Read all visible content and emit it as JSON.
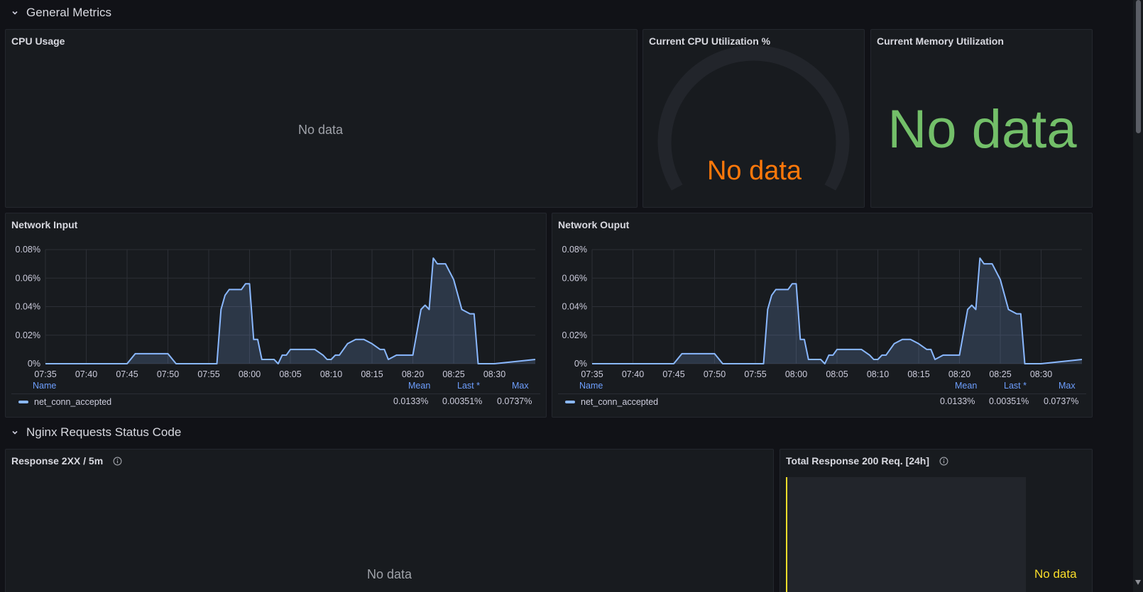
{
  "rows": [
    {
      "title": "General Metrics"
    },
    {
      "title": "Nginx Requests Status Code"
    }
  ],
  "panels": {
    "cpu_usage": {
      "title": "CPU Usage",
      "no_data": "No data"
    },
    "cpu_util": {
      "title": "Current CPU Utilization %",
      "no_data": "No data",
      "value_color": "#ff780a"
    },
    "mem_util": {
      "title": "Current Memory Utilization",
      "no_data": "No data",
      "value_color": "#73bf69"
    },
    "net_input": {
      "title": "Network Input",
      "legend": {
        "name_header": "Name",
        "mean_header": "Mean",
        "last_header": "Last *",
        "max_header": "Max",
        "series_name": "net_conn_accepted",
        "mean": "0.0133%",
        "last": "0.00351%",
        "max": "0.0737%"
      }
    },
    "net_output": {
      "title": "Network Ouput",
      "legend": {
        "name_header": "Name",
        "mean_header": "Mean",
        "last_header": "Last *",
        "max_header": "Max",
        "series_name": "net_conn_accepted",
        "mean": "0.0133%",
        "last": "0.00351%",
        "max": "0.0737%"
      }
    },
    "resp_2xx": {
      "title": "Response 2XX / 5m",
      "no_data": "No data"
    },
    "total_200": {
      "title": "Total Response 200 Req. [24h]",
      "no_data": "No data",
      "value_color": "#fade2a"
    }
  },
  "chart_data": [
    {
      "type": "area",
      "title": "Network Input",
      "series_color": "#8ab8ff",
      "x_ticks": [
        "07:35",
        "07:40",
        "07:45",
        "07:50",
        "07:55",
        "08:00",
        "08:05",
        "08:10",
        "08:15",
        "08:20",
        "08:25",
        "08:30"
      ],
      "y_ticks": [
        "0%",
        "0.02%",
        "0.04%",
        "0.06%",
        "0.08%"
      ],
      "ylim": [
        0,
        0.08
      ],
      "series": [
        {
          "name": "net_conn_accepted",
          "x": [
            "07:35",
            "07:45",
            "07:46",
            "07:50",
            "07:51",
            "07:56",
            "07:56:30",
            "07:57",
            "07:57:30",
            "07:59",
            "07:59:30",
            "08:00",
            "08:00:30",
            "08:01",
            "08:01:30",
            "08:03",
            "08:03:30",
            "08:04",
            "08:04:30",
            "08:05",
            "08:07",
            "08:08",
            "08:09",
            "08:09:30",
            "08:10",
            "08:10:30",
            "08:11",
            "08:12",
            "08:13",
            "08:14",
            "08:15",
            "08:16",
            "08:16:30",
            "08:17",
            "08:18",
            "08:19",
            "08:20",
            "08:21",
            "08:21:30",
            "08:22",
            "08:22:30",
            "08:23",
            "08:24",
            "08:25",
            "08:26",
            "08:27",
            "08:27:30",
            "08:28",
            "08:28:30",
            "08:30",
            "08:35"
          ],
          "y": [
            0,
            0,
            0.007,
            0.007,
            0,
            0,
            0.038,
            0.048,
            0.052,
            0.052,
            0.056,
            0.056,
            0.017,
            0.017,
            0.003,
            0.003,
            0,
            0.006,
            0.006,
            0.01,
            0.01,
            0.01,
            0.006,
            0.003,
            0.003,
            0.006,
            0.006,
            0.014,
            0.017,
            0.017,
            0.014,
            0.01,
            0.01,
            0.003,
            0.006,
            0.006,
            0.006,
            0.038,
            0.041,
            0.038,
            0.074,
            0.07,
            0.07,
            0.059,
            0.038,
            0.035,
            0.035,
            0,
            0,
            0,
            0.003
          ]
        }
      ]
    },
    {
      "type": "area",
      "title": "Network Ouput",
      "series_color": "#8ab8ff",
      "x_ticks": [
        "07:35",
        "07:40",
        "07:45",
        "07:50",
        "07:55",
        "08:00",
        "08:05",
        "08:10",
        "08:15",
        "08:20",
        "08:25",
        "08:30"
      ],
      "y_ticks": [
        "0%",
        "0.02%",
        "0.04%",
        "0.06%",
        "0.08%"
      ],
      "ylim": [
        0,
        0.08
      ],
      "series": [
        {
          "name": "net_conn_accepted",
          "x": [
            "07:35",
            "07:45",
            "07:46",
            "07:50",
            "07:51",
            "07:56",
            "07:56:30",
            "07:57",
            "07:57:30",
            "07:59",
            "07:59:30",
            "08:00",
            "08:00:30",
            "08:01",
            "08:01:30",
            "08:03",
            "08:03:30",
            "08:04",
            "08:04:30",
            "08:05",
            "08:07",
            "08:08",
            "08:09",
            "08:09:30",
            "08:10",
            "08:10:30",
            "08:11",
            "08:12",
            "08:13",
            "08:14",
            "08:15",
            "08:16",
            "08:16:30",
            "08:17",
            "08:18",
            "08:19",
            "08:20",
            "08:21",
            "08:21:30",
            "08:22",
            "08:22:30",
            "08:23",
            "08:24",
            "08:25",
            "08:26",
            "08:27",
            "08:27:30",
            "08:28",
            "08:28:30",
            "08:30",
            "08:35"
          ],
          "y": [
            0,
            0,
            0.007,
            0.007,
            0,
            0,
            0.038,
            0.048,
            0.052,
            0.052,
            0.056,
            0.056,
            0.017,
            0.017,
            0.003,
            0.003,
            0,
            0.006,
            0.006,
            0.01,
            0.01,
            0.01,
            0.006,
            0.003,
            0.003,
            0.006,
            0.006,
            0.014,
            0.017,
            0.017,
            0.014,
            0.01,
            0.01,
            0.003,
            0.006,
            0.006,
            0.006,
            0.038,
            0.041,
            0.038,
            0.074,
            0.07,
            0.07,
            0.059,
            0.038,
            0.035,
            0.035,
            0,
            0,
            0,
            0.003
          ]
        }
      ]
    }
  ]
}
